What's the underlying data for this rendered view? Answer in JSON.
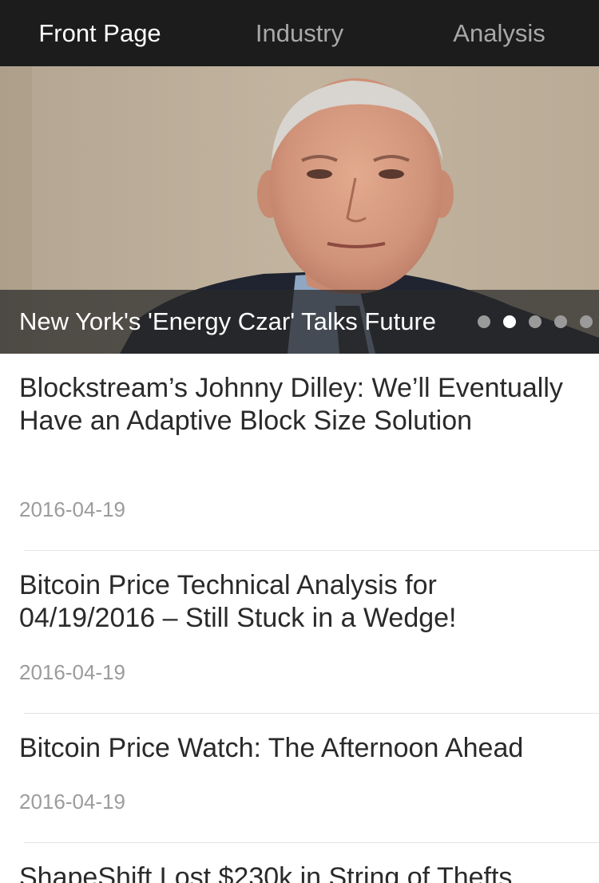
{
  "tabs": [
    {
      "label": "Front Page",
      "active": true
    },
    {
      "label": "Industry",
      "active": false
    },
    {
      "label": "Analysis",
      "active": false
    }
  ],
  "hero": {
    "caption": "New York's 'Energy Czar' Talks Future",
    "dots": [
      false,
      true,
      false,
      false,
      false
    ]
  },
  "articles": [
    {
      "title": "Blockstream’s Johnny Dilley: We’ll Eventually Have an Adaptive Block Size Solution",
      "date": "2016-04-19"
    },
    {
      "title": "Bitcoin Price Technical Analysis for 04/19/2016 – Still Stuck in a Wedge!",
      "date": "2016-04-19"
    },
    {
      "title": "Bitcoin Price Watch: The Afternoon Ahead",
      "date": "2016-04-19"
    },
    {
      "title": "ShapeShift Lost $230k in String of Thefts,",
      "date": ""
    }
  ],
  "colors": {
    "tabbar_bg": "#1c1c1c",
    "tab_active": "#ffffff",
    "tab_inactive": "#a8a8a8",
    "caption_overlay": "rgba(40,40,40,0.72)",
    "title_text": "#2a2a2a",
    "date_text": "#9c9c9c"
  }
}
